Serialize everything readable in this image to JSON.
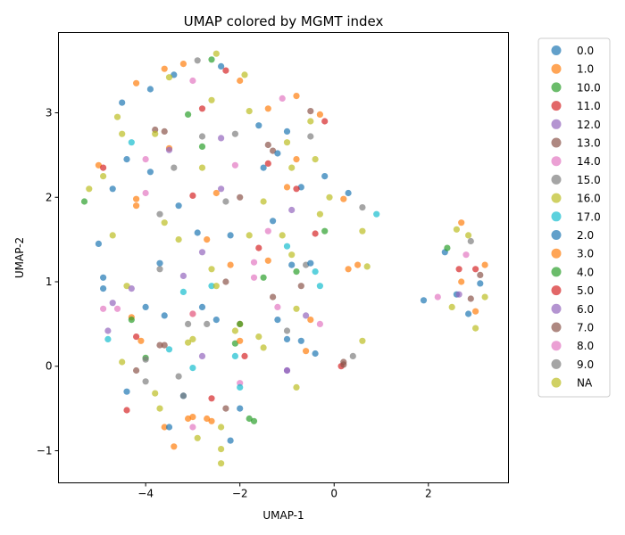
{
  "chart_data": {
    "type": "scatter",
    "title": "UMAP colored by MGMT index",
    "xlabel": "UMAP-1",
    "ylabel": "UMAP-2",
    "xlim": [
      -5.85,
      3.7
    ],
    "ylim": [
      -1.38,
      3.95
    ],
    "xticks": [
      -4,
      -2,
      0,
      2
    ],
    "yticks": [
      -1,
      0,
      1,
      2,
      3
    ],
    "grid": false,
    "legend_position": "outside-right",
    "legend": [
      {
        "label": "0.0",
        "color": "#1f77b4"
      },
      {
        "label": "1.0",
        "color": "#ff7f0e"
      },
      {
        "label": "10.0",
        "color": "#2ca02c"
      },
      {
        "label": "11.0",
        "color": "#d62728"
      },
      {
        "label": "12.0",
        "color": "#9467bd"
      },
      {
        "label": "13.0",
        "color": "#8c564b"
      },
      {
        "label": "14.0",
        "color": "#e377c2"
      },
      {
        "label": "15.0",
        "color": "#7f7f7f"
      },
      {
        "label": "16.0",
        "color": "#bcbd22"
      },
      {
        "label": "17.0",
        "color": "#17becf"
      },
      {
        "label": "2.0",
        "color": "#1f77b4"
      },
      {
        "label": "3.0",
        "color": "#ff7f0e"
      },
      {
        "label": "4.0",
        "color": "#2ca02c"
      },
      {
        "label": "5.0",
        "color": "#d62728"
      },
      {
        "label": "6.0",
        "color": "#9467bd"
      },
      {
        "label": "7.0",
        "color": "#8c564b"
      },
      {
        "label": "8.0",
        "color": "#e377c2"
      },
      {
        "label": "9.0",
        "color": "#7f7f7f"
      },
      {
        "label": "NA",
        "color": "#bcbd22"
      }
    ],
    "series": [
      {
        "name": "0.0",
        "points": [
          [
            -3.9,
            3.28
          ],
          [
            -2.4,
            3.55
          ],
          [
            -1.6,
            2.85
          ],
          [
            -1.0,
            2.78
          ],
          [
            -0.2,
            2.25
          ],
          [
            0.3,
            2.05
          ],
          [
            -4.4,
            2.45
          ],
          [
            -3.3,
            1.9
          ],
          [
            -1.5,
            2.35
          ],
          [
            -0.9,
            1.2
          ],
          [
            -4.9,
            1.05
          ],
          [
            -4.0,
            0.7
          ],
          [
            -2.5,
            0.55
          ],
          [
            -1.2,
            0.55
          ],
          [
            -0.4,
            0.15
          ],
          [
            -4.4,
            -0.3
          ],
          [
            -3.2,
            -0.35
          ],
          [
            -2.0,
            -0.5
          ],
          [
            -0.7,
            0.3
          ]
        ]
      },
      {
        "name": "1.0",
        "points": [
          [
            -3.6,
            3.52
          ],
          [
            -2.0,
            3.38
          ],
          [
            -0.8,
            3.2
          ],
          [
            -0.3,
            2.98
          ],
          [
            -5.0,
            2.38
          ],
          [
            -3.5,
            2.58
          ],
          [
            -2.5,
            2.05
          ],
          [
            -4.2,
            1.98
          ],
          [
            -2.2,
            1.2
          ],
          [
            -1.4,
            1.25
          ],
          [
            0.5,
            1.2
          ],
          [
            -4.3,
            0.58
          ],
          [
            -3.0,
            0.62
          ],
          [
            -2.0,
            0.5
          ],
          [
            -0.6,
            0.18
          ],
          [
            -3.1,
            -0.62
          ],
          [
            -3.6,
            -0.72
          ],
          [
            -2.7,
            -0.62
          ],
          [
            0.2,
            1.98
          ]
        ]
      },
      {
        "name": "10.0",
        "points": [
          [
            -5.3,
            1.95
          ],
          [
            -3.1,
            2.98
          ],
          [
            -2.6,
            3.63
          ],
          [
            -4.0,
            0.1
          ],
          [
            -1.7,
            -0.65
          ],
          [
            -2.1,
            0.27
          ],
          [
            -0.8,
            1.12
          ]
        ]
      },
      {
        "name": "11.0",
        "points": [
          [
            -4.9,
            2.35
          ],
          [
            -3.0,
            2.02
          ],
          [
            -2.3,
            3.5
          ],
          [
            -1.4,
            2.4
          ],
          [
            -0.2,
            2.9
          ],
          [
            -0.4,
            1.57
          ],
          [
            -1.9,
            0.12
          ],
          [
            -4.2,
            0.35
          ]
        ]
      },
      {
        "name": "12.0",
        "points": [
          [
            -4.7,
            0.75
          ],
          [
            -4.8,
            0.42
          ],
          [
            -3.5,
            2.56
          ],
          [
            -2.4,
            2.7
          ],
          [
            -1.0,
            -0.05
          ],
          [
            -2.8,
            0.12
          ],
          [
            -0.6,
            0.6
          ]
        ]
      },
      {
        "name": "13.0",
        "points": [
          [
            -3.8,
            2.8
          ],
          [
            -2.0,
            2.0
          ],
          [
            -1.3,
            2.55
          ],
          [
            -4.2,
            -0.05
          ],
          [
            -2.3,
            -0.5
          ],
          [
            0.2,
            0.05
          ],
          [
            -0.5,
            3.02
          ],
          [
            -1.3,
            0.82
          ],
          [
            -3.7,
            0.25
          ]
        ]
      },
      {
        "name": "14.0",
        "points": [
          [
            -4.0,
            2.45
          ],
          [
            -3.0,
            3.38
          ],
          [
            -0.3,
            0.5
          ],
          [
            -2.0,
            -0.2
          ],
          [
            -4.6,
            0.68
          ],
          [
            -3.0,
            -0.72
          ],
          [
            -1.7,
            1.23
          ],
          [
            -1.1,
            3.17
          ]
        ]
      },
      {
        "name": "15.0",
        "points": [
          [
            -2.9,
            3.62
          ],
          [
            -2.8,
            2.72
          ],
          [
            -3.7,
            1.15
          ],
          [
            -2.3,
            1.95
          ],
          [
            -0.6,
            1.2
          ],
          [
            -3.1,
            0.5
          ],
          [
            -3.2,
            -0.35
          ],
          [
            0.4,
            0.12
          ],
          [
            -4.0,
            -0.18
          ]
        ]
      },
      {
        "name": "16.0",
        "points": [
          [
            -2.5,
            3.7
          ],
          [
            -1.8,
            3.02
          ],
          [
            -0.4,
            2.45
          ],
          [
            -4.5,
            2.75
          ],
          [
            -2.6,
            1.15
          ],
          [
            -1.5,
            1.95
          ],
          [
            -3.6,
            1.7
          ],
          [
            -0.9,
            2.35
          ],
          [
            0.6,
            1.6
          ],
          [
            -4.4,
            0.95
          ],
          [
            -2.1,
            0.42
          ],
          [
            -3.1,
            0.28
          ],
          [
            -1.6,
            0.35
          ],
          [
            -0.8,
            0.68
          ],
          [
            -2.4,
            -0.98
          ],
          [
            -2.4,
            -1.15
          ],
          [
            -3.8,
            -0.32
          ]
        ]
      },
      {
        "name": "17.0",
        "points": [
          [
            -4.3,
            2.65
          ],
          [
            -1.0,
            1.42
          ],
          [
            -0.4,
            1.12
          ],
          [
            -3.2,
            0.88
          ],
          [
            -4.8,
            0.32
          ],
          [
            -3.5,
            0.2
          ],
          [
            -2.1,
            0.12
          ],
          [
            0.9,
            1.8
          ],
          [
            -2.0,
            -0.25
          ],
          [
            -0.3,
            0.95
          ],
          [
            -2.6,
            0.95
          ],
          [
            -3.0,
            -0.02
          ]
        ]
      },
      {
        "name": "2.0",
        "points": [
          [
            -4.5,
            3.12
          ],
          [
            -3.4,
            3.45
          ],
          [
            -1.2,
            2.52
          ],
          [
            -0.7,
            2.12
          ],
          [
            -4.7,
            2.1
          ],
          [
            -3.9,
            2.3
          ],
          [
            -2.9,
            1.58
          ],
          [
            -1.3,
            1.72
          ],
          [
            -5.0,
            1.45
          ],
          [
            -3.7,
            1.22
          ],
          [
            -2.2,
            1.55
          ],
          [
            -0.5,
            1.22
          ],
          [
            -3.6,
            0.6
          ],
          [
            -2.8,
            0.7
          ],
          [
            -1.0,
            0.32
          ],
          [
            -4.9,
            0.92
          ],
          [
            -3.5,
            -0.72
          ],
          [
            -2.2,
            -0.88
          ],
          [
            1.9,
            0.78
          ],
          [
            2.35,
            1.35
          ],
          [
            2.6,
            0.85
          ],
          [
            2.85,
            0.62
          ],
          [
            3.1,
            0.98
          ]
        ]
      },
      {
        "name": "3.0",
        "points": [
          [
            -4.2,
            3.35
          ],
          [
            -3.2,
            3.58
          ],
          [
            -1.4,
            3.05
          ],
          [
            -0.8,
            2.45
          ],
          [
            -4.2,
            1.9
          ],
          [
            -2.7,
            1.5
          ],
          [
            -1.0,
            2.12
          ],
          [
            0.3,
            1.15
          ],
          [
            -3.0,
            -0.6
          ],
          [
            -3.4,
            -0.95
          ],
          [
            -2.6,
            -0.65
          ],
          [
            -2.0,
            0.3
          ],
          [
            -4.1,
            0.3
          ],
          [
            2.7,
            1.7
          ],
          [
            3.2,
            1.2
          ],
          [
            3.0,
            0.65
          ],
          [
            2.7,
            1.0
          ],
          [
            -0.5,
            0.55
          ]
        ]
      },
      {
        "name": "4.0",
        "points": [
          [
            -4.3,
            0.55
          ],
          [
            -2.8,
            2.6
          ],
          [
            -1.5,
            1.05
          ],
          [
            -0.2,
            1.6
          ],
          [
            2.4,
            1.4
          ],
          [
            -2.0,
            0.5
          ],
          [
            -1.8,
            -0.62
          ]
        ]
      },
      {
        "name": "5.0",
        "points": [
          [
            -2.8,
            3.05
          ],
          [
            -1.6,
            1.4
          ],
          [
            -0.8,
            2.1
          ],
          [
            -4.4,
            -0.52
          ],
          [
            2.65,
            1.15
          ],
          [
            3.0,
            1.15
          ],
          [
            0.15,
            0.0
          ],
          [
            -2.6,
            -0.38
          ]
        ]
      },
      {
        "name": "6.0",
        "points": [
          [
            -2.4,
            2.1
          ],
          [
            -0.9,
            1.85
          ],
          [
            -3.2,
            1.07
          ],
          [
            -4.3,
            0.92
          ],
          [
            -2.8,
            1.35
          ],
          [
            2.65,
            0.85
          ],
          [
            -1.0,
            -0.05
          ]
        ]
      },
      {
        "name": "7.0",
        "points": [
          [
            -3.6,
            2.78
          ],
          [
            -1.4,
            2.62
          ],
          [
            -3.6,
            0.25
          ],
          [
            -2.3,
            1.0
          ],
          [
            0.2,
            0.02
          ],
          [
            2.9,
            0.8
          ],
          [
            3.1,
            1.08
          ],
          [
            -0.7,
            0.95
          ]
        ]
      },
      {
        "name": "8.0",
        "points": [
          [
            -2.1,
            2.38
          ],
          [
            -4.0,
            2.05
          ],
          [
            -1.7,
            1.05
          ],
          [
            -3.0,
            0.62
          ],
          [
            -1.2,
            0.7
          ],
          [
            2.8,
            1.32
          ],
          [
            2.2,
            0.82
          ],
          [
            -4.9,
            0.68
          ],
          [
            -1.4,
            1.6
          ]
        ]
      },
      {
        "name": "9.0",
        "points": [
          [
            -3.4,
            2.35
          ],
          [
            -2.1,
            2.75
          ],
          [
            -0.5,
            2.72
          ],
          [
            -3.7,
            1.8
          ],
          [
            -2.7,
            0.5
          ],
          [
            -1.0,
            0.42
          ],
          [
            -4.0,
            0.08
          ],
          [
            -3.3,
            -0.12
          ],
          [
            2.9,
            1.48
          ],
          [
            0.6,
            1.88
          ]
        ]
      },
      {
        "name": "NA",
        "points": [
          [
            -3.5,
            3.42
          ],
          [
            -2.6,
            3.15
          ],
          [
            -1.9,
            3.45
          ],
          [
            -0.5,
            2.9
          ],
          [
            -4.6,
            2.95
          ],
          [
            -3.8,
            2.75
          ],
          [
            -1.0,
            2.65
          ],
          [
            -0.1,
            2.0
          ],
          [
            -2.8,
            2.35
          ],
          [
            -4.9,
            2.25
          ],
          [
            -5.2,
            2.1
          ],
          [
            -3.3,
            1.5
          ],
          [
            -1.8,
            1.55
          ],
          [
            -0.3,
            1.8
          ],
          [
            -4.7,
            1.55
          ],
          [
            -2.5,
            0.95
          ],
          [
            -0.9,
            1.32
          ],
          [
            0.6,
            0.3
          ],
          [
            -4.5,
            0.05
          ],
          [
            -3.0,
            0.32
          ],
          [
            -1.5,
            0.22
          ],
          [
            -0.8,
            -0.25
          ],
          [
            -3.7,
            -0.5
          ],
          [
            -2.9,
            -0.85
          ],
          [
            -2.4,
            -0.72
          ],
          [
            2.6,
            1.62
          ],
          [
            2.85,
            1.55
          ],
          [
            3.0,
            0.45
          ],
          [
            2.5,
            0.7
          ],
          [
            3.2,
            0.82
          ],
          [
            0.7,
            1.18
          ],
          [
            -1.1,
            1.55
          ]
        ]
      }
    ]
  }
}
